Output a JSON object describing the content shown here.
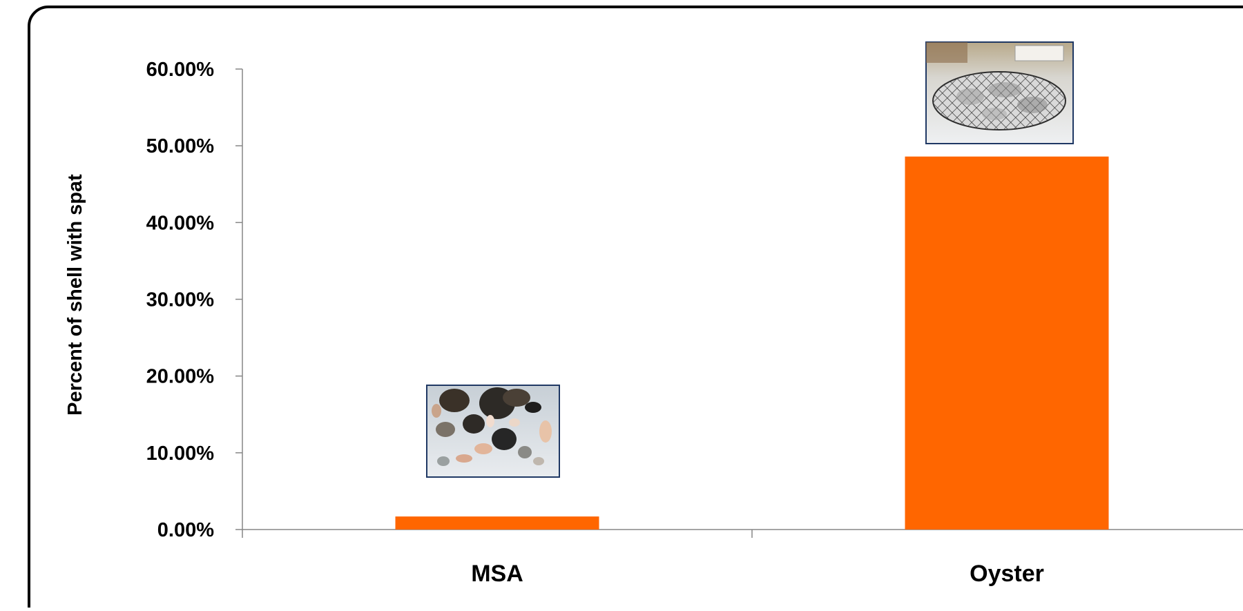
{
  "chart_data": {
    "type": "bar",
    "categories": [
      "MSA",
      "Oyster"
    ],
    "series": [
      {
        "values": [
          0.017,
          0.486
        ]
      }
    ],
    "title": "",
    "xlabel": "",
    "ylabel": "Percent of shell with spat",
    "ylim": [
      0,
      0.6
    ],
    "y_ticks": [
      0,
      0.1,
      0.2,
      0.3,
      0.4,
      0.5,
      0.6
    ],
    "y_tick_labels": [
      "0.00%",
      "10.00%",
      "20.00%",
      "30.00%",
      "40.00%",
      "50.00%",
      "60.00%"
    ],
    "grid": false,
    "legend": "none",
    "bar_color": "#FF6600",
    "axis_color": "#868686",
    "photos": [
      {
        "category": "MSA",
        "subject": "mixed shells and stones photo"
      },
      {
        "category": "Oyster",
        "subject": "bagged oyster shell photo"
      }
    ]
  }
}
